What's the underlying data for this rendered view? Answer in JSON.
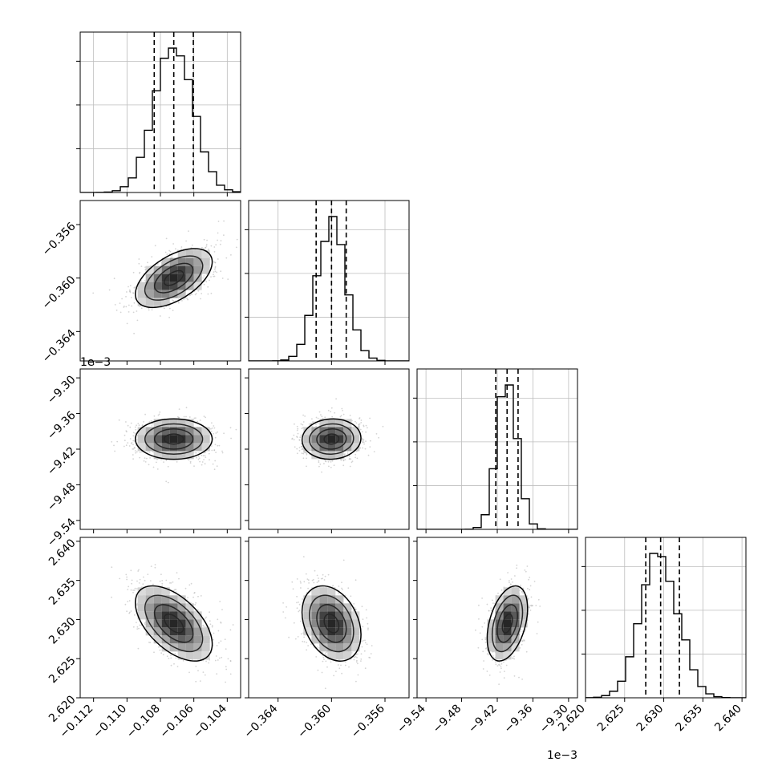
{
  "chart_data": {
    "type": "corner",
    "parameters": [
      {
        "range": [
          -0.1128,
          -0.1032
        ],
        "ticks": [
          -0.112,
          -0.11,
          -0.108,
          -0.106,
          -0.104
        ],
        "tick_labels": [
          "−0.112",
          "−0.110",
          "−0.108",
          "−0.106",
          "−0.104"
        ],
        "scale_label": "",
        "center": -0.1072,
        "sigma": 0.00115,
        "quantiles": [
          -0.10837,
          -0.1072,
          -0.10603
        ]
      },
      {
        "range": [
          -0.3662,
          -0.3542
        ],
        "ticks": [
          -0.364,
          -0.36,
          -0.356
        ],
        "tick_labels": [
          "−0.364",
          "−0.360",
          "−0.356"
        ],
        "scale_label": "",
        "center": -0.36,
        "sigma": 0.0011,
        "quantiles": [
          -0.36115,
          -0.36,
          -0.3589
        ]
      },
      {
        "range": [
          -9.555,
          -9.285
        ],
        "ticks": [
          -9.54,
          -9.48,
          -9.42,
          -9.36,
          -9.3
        ],
        "tick_labels": [
          "−9.54",
          "−9.48",
          "−9.42",
          "−9.36",
          "−9.30"
        ],
        "scale_label": "1e−3",
        "center": -9.403,
        "sigma": 0.017,
        "quantiles": [
          -9.4225,
          -9.4035,
          -9.385
        ]
      },
      {
        "range": [
          2.62,
          2.6405
        ],
        "ticks": [
          2.62,
          2.625,
          2.63,
          2.635,
          2.64
        ],
        "tick_labels": [
          "2.620",
          "2.625",
          "2.630",
          "2.635",
          "2.640"
        ],
        "scale_label": "",
        "center": 2.6295,
        "sigma": 0.0024,
        "quantiles": [
          2.6277,
          2.6296,
          2.632
        ]
      }
    ],
    "correlations": {
      "0-1": 0.55,
      "0-2": 0.0,
      "1-2": 0.05,
      "0-3": -0.55,
      "1-3": -0.3,
      "2-3": 0.4
    },
    "marginal_hist_bins": 20,
    "quantile_levels": [
      0.16,
      0.5,
      0.84
    ],
    "grid": true,
    "colors": {
      "points": "#b0b0b0",
      "contour": "#000000",
      "density_dark": "#000000",
      "density_light": "#ffffff"
    }
  }
}
